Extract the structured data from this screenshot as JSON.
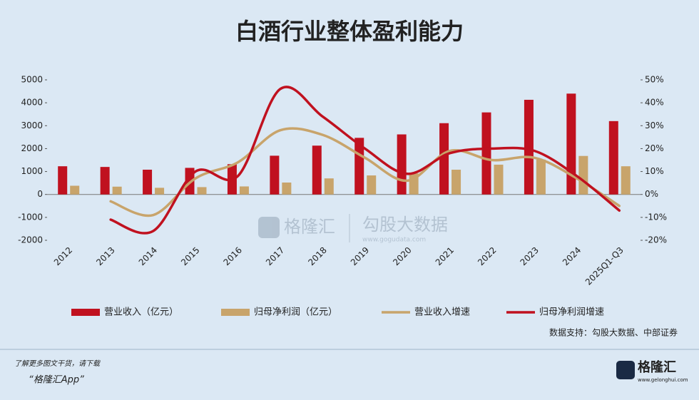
{
  "chart_data": {
    "type": "combo",
    "title": "白酒行业整体盈利能力",
    "categories": [
      "2012",
      "2013",
      "2014",
      "2015",
      "2016",
      "2017",
      "2018",
      "2019",
      "2020",
      "2021",
      "2022",
      "2023",
      "2024",
      "2025Q1-Q3"
    ],
    "series": [
      {
        "name": "营业收入（亿元）",
        "type": "bar",
        "color": "#c0111f",
        "values": [
          1230,
          1200,
          1080,
          1160,
          1320,
          1690,
          2130,
          2470,
          2620,
          3110,
          3580,
          4130,
          4400,
          3200
        ]
      },
      {
        "name": "归母净利润（亿元）",
        "type": "bar",
        "color": "#c8a46b",
        "values": [
          380,
          340,
          290,
          320,
          350,
          520,
          700,
          830,
          920,
          1080,
          1300,
          1520,
          1680,
          1230
        ]
      },
      {
        "name": "营业收入增速",
        "type": "line",
        "axis": "y2",
        "color": "#c8a46b",
        "values": [
          null,
          -3,
          -9,
          7,
          14,
          28,
          26,
          16,
          6,
          19,
          15,
          16,
          7,
          -5
        ]
      },
      {
        "name": "归母净利润增速",
        "type": "line",
        "axis": "y2",
        "color": "#c0111f",
        "values": [
          null,
          -11,
          -16,
          10,
          8,
          46,
          34,
          20,
          9,
          18,
          20,
          19,
          8,
          -7
        ]
      }
    ],
    "ylim": [
      -2000,
      5000
    ],
    "yticks": [
      -2000,
      -1000,
      0,
      1000,
      2000,
      3000,
      4000,
      5000
    ],
    "y2lim": [
      -20,
      50
    ],
    "y2ticks": [
      {
        "value": -20,
        "label": "-20%"
      },
      {
        "value": -10,
        "label": "-10%"
      },
      {
        "value": 0,
        "label": "0%"
      },
      {
        "value": 10,
        "label": "10%"
      },
      {
        "value": 20,
        "label": "20%"
      },
      {
        "value": 30,
        "label": "30%"
      },
      {
        "value": 40,
        "label": "40%"
      },
      {
        "value": 50,
        "label": "50%"
      }
    ],
    "source": "数据支持：勾股大数据、中部证券"
  },
  "watermark": {
    "left": "格隆汇",
    "right": "勾股大数据",
    "url": "www.gogudata.com"
  },
  "footer": {
    "line1": "了解更多图文干货，请下载",
    "line2": "“格隆汇App”",
    "logo": "格隆汇",
    "logo_url": "www.gelonghui.com"
  }
}
